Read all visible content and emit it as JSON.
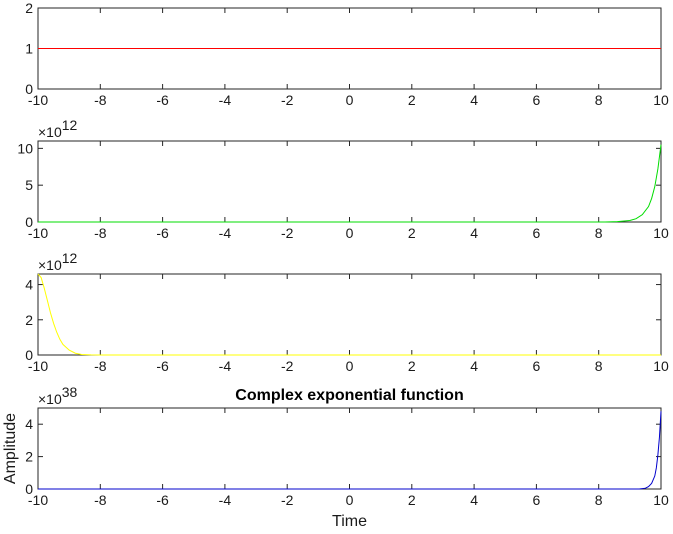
{
  "chart_data": [
    {
      "type": "line",
      "title": "",
      "xlabel": "",
      "ylabel": "",
      "xlim": [
        -10,
        10
      ],
      "ylim": [
        0,
        2
      ],
      "xticks": [
        -10,
        -8,
        -6,
        -4,
        -2,
        0,
        2,
        4,
        6,
        8,
        10
      ],
      "yticks": [
        0,
        1,
        2
      ],
      "exponent_label": "",
      "color": "#ff0000",
      "series": [
        {
          "x": [
            -10,
            10
          ],
          "y": [
            1,
            1
          ]
        }
      ]
    },
    {
      "type": "line",
      "title": "",
      "xlabel": "",
      "ylabel": "",
      "xlim": [
        -10,
        10
      ],
      "ylim": [
        0,
        11
      ],
      "xticks": [
        -10,
        -8,
        -6,
        -4,
        -2,
        0,
        2,
        4,
        6,
        8,
        10
      ],
      "yticks": [
        0,
        5,
        10
      ],
      "exponent_label": "12",
      "color": "#00dd00",
      "series": [
        {
          "x": [
            -10,
            8.2,
            8.6,
            9.0,
            9.2,
            9.4,
            9.6,
            9.7,
            9.8,
            9.9,
            10.0
          ],
          "y": [
            0,
            0,
            0.05,
            0.2,
            0.45,
            1.0,
            2.1,
            3.2,
            4.8,
            7.2,
            10.5
          ]
        }
      ]
    },
    {
      "type": "line",
      "title": "",
      "xlabel": "",
      "ylabel": "",
      "xlim": [
        -10,
        10
      ],
      "ylim": [
        0,
        4.6
      ],
      "xticks": [
        -10,
        -8,
        -6,
        -4,
        -2,
        0,
        2,
        4,
        6,
        8,
        10
      ],
      "yticks": [
        0,
        2,
        4
      ],
      "exponent_label": "12",
      "color": "#ffff00",
      "series": [
        {
          "x": [
            -10.0,
            -9.9,
            -9.8,
            -9.7,
            -9.6,
            -9.5,
            -9.4,
            -9.3,
            -9.2,
            -9.0,
            -8.8,
            -8.6,
            -8.3,
            -8.0,
            10.0
          ],
          "y": [
            4.6,
            4.4,
            3.8,
            3.1,
            2.4,
            1.8,
            1.3,
            0.9,
            0.6,
            0.28,
            0.1,
            0.03,
            0.005,
            0,
            0
          ]
        }
      ]
    },
    {
      "type": "line",
      "title": "Complex exponential function",
      "xlabel": "Time",
      "ylabel": "Amplitude",
      "xlim": [
        -10,
        10
      ],
      "ylim": [
        0,
        5
      ],
      "xticks": [
        -10,
        -8,
        -6,
        -4,
        -2,
        0,
        2,
        4,
        6,
        8,
        10
      ],
      "yticks": [
        0,
        2,
        4
      ],
      "exponent_label": "38",
      "color": "#0000cc",
      "series": [
        {
          "x": [
            -10,
            9.3,
            9.5,
            9.6,
            9.7,
            9.8,
            9.85,
            9.9,
            9.95,
            10.0
          ],
          "y": [
            0,
            0,
            0.05,
            0.15,
            0.35,
            0.8,
            1.3,
            2.1,
            3.2,
            4.8
          ]
        }
      ]
    }
  ]
}
